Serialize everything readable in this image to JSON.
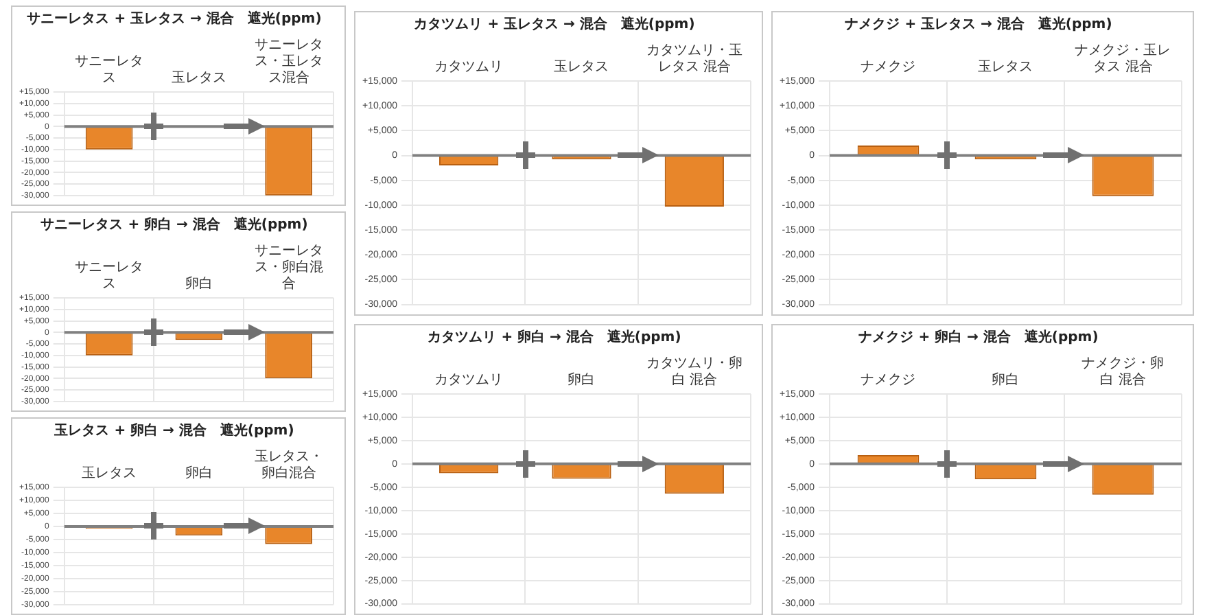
{
  "chart_data": [
    {
      "type": "bar",
      "title": "サニーレタス + 玉レタス → 混合　遮光(ppm)",
      "categories": [
        "サニーレタス",
        "玉レタス",
        "サニーレタス・玉レタス混合"
      ],
      "values": [
        -10000,
        -500,
        -30000
      ],
      "color": "#e8862a",
      "ylim": [
        -30000,
        15000
      ],
      "yticks": [
        {
          "value": 15000,
          "label": "+15,000"
        },
        {
          "value": 10000,
          "label": "+10,000"
        },
        {
          "value": 5000,
          "label": "+5,000"
        },
        {
          "value": 0,
          "label": "0"
        },
        {
          "value": -5000,
          "label": "-5,000"
        },
        {
          "value": -10000,
          "label": "-10,000"
        },
        {
          "value": -15000,
          "label": "-15,000"
        },
        {
          "value": -20000,
          "label": "-20,000"
        },
        {
          "value": -25000,
          "label": "-25,000"
        },
        {
          "value": -30000,
          "label": "-30,000"
        }
      ],
      "grid": true
    },
    {
      "type": "bar",
      "title": "サニーレタス + 卵白 → 混合　遮光(ppm)",
      "categories": [
        "サニーレタス",
        "卵白",
        "サニーレタス・卵白混合"
      ],
      "values": [
        -10000,
        -3300,
        -20000
      ],
      "color": "#e8862a",
      "ylim": [
        -30000,
        15000
      ],
      "yticks": [
        {
          "value": 15000,
          "label": "+15,000"
        },
        {
          "value": 10000,
          "label": "+10,000"
        },
        {
          "value": 5000,
          "label": "+5,000"
        },
        {
          "value": 0,
          "label": "0"
        },
        {
          "value": -5000,
          "label": "-5,000"
        },
        {
          "value": -10000,
          "label": "-10,000"
        },
        {
          "value": -15000,
          "label": "-15,000"
        },
        {
          "value": -20000,
          "label": "-20,000"
        },
        {
          "value": -25000,
          "label": "-25,000"
        },
        {
          "value": -30000,
          "label": "-30,000"
        }
      ],
      "grid": true
    },
    {
      "type": "bar",
      "title": "玉レタス + 卵白 → 混合　遮光(ppm)",
      "categories": [
        "玉レタス",
        "卵白",
        "玉レタス・卵白混合"
      ],
      "values": [
        -900,
        -3500,
        -6800
      ],
      "color": "#e8862a",
      "ylim": [
        -30000,
        15000
      ],
      "yticks": [
        {
          "value": 15000,
          "label": "+15,000"
        },
        {
          "value": 10000,
          "label": "+10,000"
        },
        {
          "value": 5000,
          "label": "+5,000"
        },
        {
          "value": 0,
          "label": "0"
        },
        {
          "value": -5000,
          "label": "-5,000"
        },
        {
          "value": -10000,
          "label": "-10,000"
        },
        {
          "value": -15000,
          "label": "-15,000"
        },
        {
          "value": -20000,
          "label": "-20,000"
        },
        {
          "value": -25000,
          "label": "-25,000"
        },
        {
          "value": -30000,
          "label": "-30,000"
        }
      ],
      "grid": true
    },
    {
      "type": "bar",
      "title": "カタツムリ + 玉レタス → 混合　遮光(ppm)",
      "categories": [
        "カタツムリ",
        "玉レタス",
        "カタツムリ・玉レタス 混合"
      ],
      "values": [
        -2000,
        -800,
        -10300
      ],
      "color": "#e8862a",
      "ylim": [
        -30000,
        15000
      ],
      "yticks": [
        {
          "value": 15000,
          "label": "+15,000"
        },
        {
          "value": 10000,
          "label": "+10,000"
        },
        {
          "value": 5000,
          "label": "+5,000"
        },
        {
          "value": 0,
          "label": "0"
        },
        {
          "value": -5000,
          "label": "-5,000"
        },
        {
          "value": -10000,
          "label": "-10,000"
        },
        {
          "value": -15000,
          "label": "-15,000"
        },
        {
          "value": -20000,
          "label": "-20,000"
        },
        {
          "value": -25000,
          "label": "-25,000"
        },
        {
          "value": -30000,
          "label": "-30,000"
        }
      ],
      "grid": true
    },
    {
      "type": "bar",
      "title": "ナメクジ + 玉レタス → 混合　遮光(ppm)",
      "categories": [
        "ナメクジ",
        "玉レタス",
        "ナメクジ・玉レタス 混合"
      ],
      "values": [
        2000,
        -800,
        -8200
      ],
      "color": "#e8862a",
      "ylim": [
        -30000,
        15000
      ],
      "yticks": [
        {
          "value": 15000,
          "label": "+15,000"
        },
        {
          "value": 10000,
          "label": "+10,000"
        },
        {
          "value": 5000,
          "label": "+5,000"
        },
        {
          "value": 0,
          "label": "0"
        },
        {
          "value": -5000,
          "label": "-5,000"
        },
        {
          "value": -10000,
          "label": "-10,000"
        },
        {
          "value": -15000,
          "label": "-15,000"
        },
        {
          "value": -20000,
          "label": "-20,000"
        },
        {
          "value": -25000,
          "label": "-25,000"
        },
        {
          "value": -30000,
          "label": "-30,000"
        }
      ],
      "grid": true
    },
    {
      "type": "bar",
      "title": "カタツムリ + 卵白 → 混合　遮光(ppm)",
      "categories": [
        "カタツムリ",
        "卵白",
        "カタツムリ・卵白 混合"
      ],
      "values": [
        -2000,
        -3200,
        -6400
      ],
      "color": "#e8862a",
      "ylim": [
        -30000,
        15000
      ],
      "yticks": [
        {
          "value": 15000,
          "label": "+15,000"
        },
        {
          "value": 10000,
          "label": "+10,000"
        },
        {
          "value": 5000,
          "label": "+5,000"
        },
        {
          "value": 0,
          "label": "0"
        },
        {
          "value": -5000,
          "label": "-5,000"
        },
        {
          "value": -10000,
          "label": "-10,000"
        },
        {
          "value": -15000,
          "label": "-15,000"
        },
        {
          "value": -20000,
          "label": "-20,000"
        },
        {
          "value": -25000,
          "label": "-25,000"
        },
        {
          "value": -30000,
          "label": "-30,000"
        }
      ],
      "grid": true
    },
    {
      "type": "bar",
      "title": "ナメクジ + 卵白 → 混合　遮光(ppm)",
      "categories": [
        "ナメクジ",
        "卵白",
        "ナメクジ・卵白 混合"
      ],
      "values": [
        1900,
        -3300,
        -6600
      ],
      "color": "#e8862a",
      "ylim": [
        -30000,
        15000
      ],
      "yticks": [
        {
          "value": 15000,
          "label": "+15,000"
        },
        {
          "value": 10000,
          "label": "+10,000"
        },
        {
          "value": 5000,
          "label": "+5,000"
        },
        {
          "value": 0,
          "label": "0"
        },
        {
          "value": -5000,
          "label": "-5,000"
        },
        {
          "value": -10000,
          "label": "-10,000"
        },
        {
          "value": -15000,
          "label": "-15,000"
        },
        {
          "value": -20000,
          "label": "-20,000"
        },
        {
          "value": -25000,
          "label": "-25,000"
        },
        {
          "value": -30000,
          "label": "-30,000"
        }
      ],
      "grid": true
    }
  ]
}
